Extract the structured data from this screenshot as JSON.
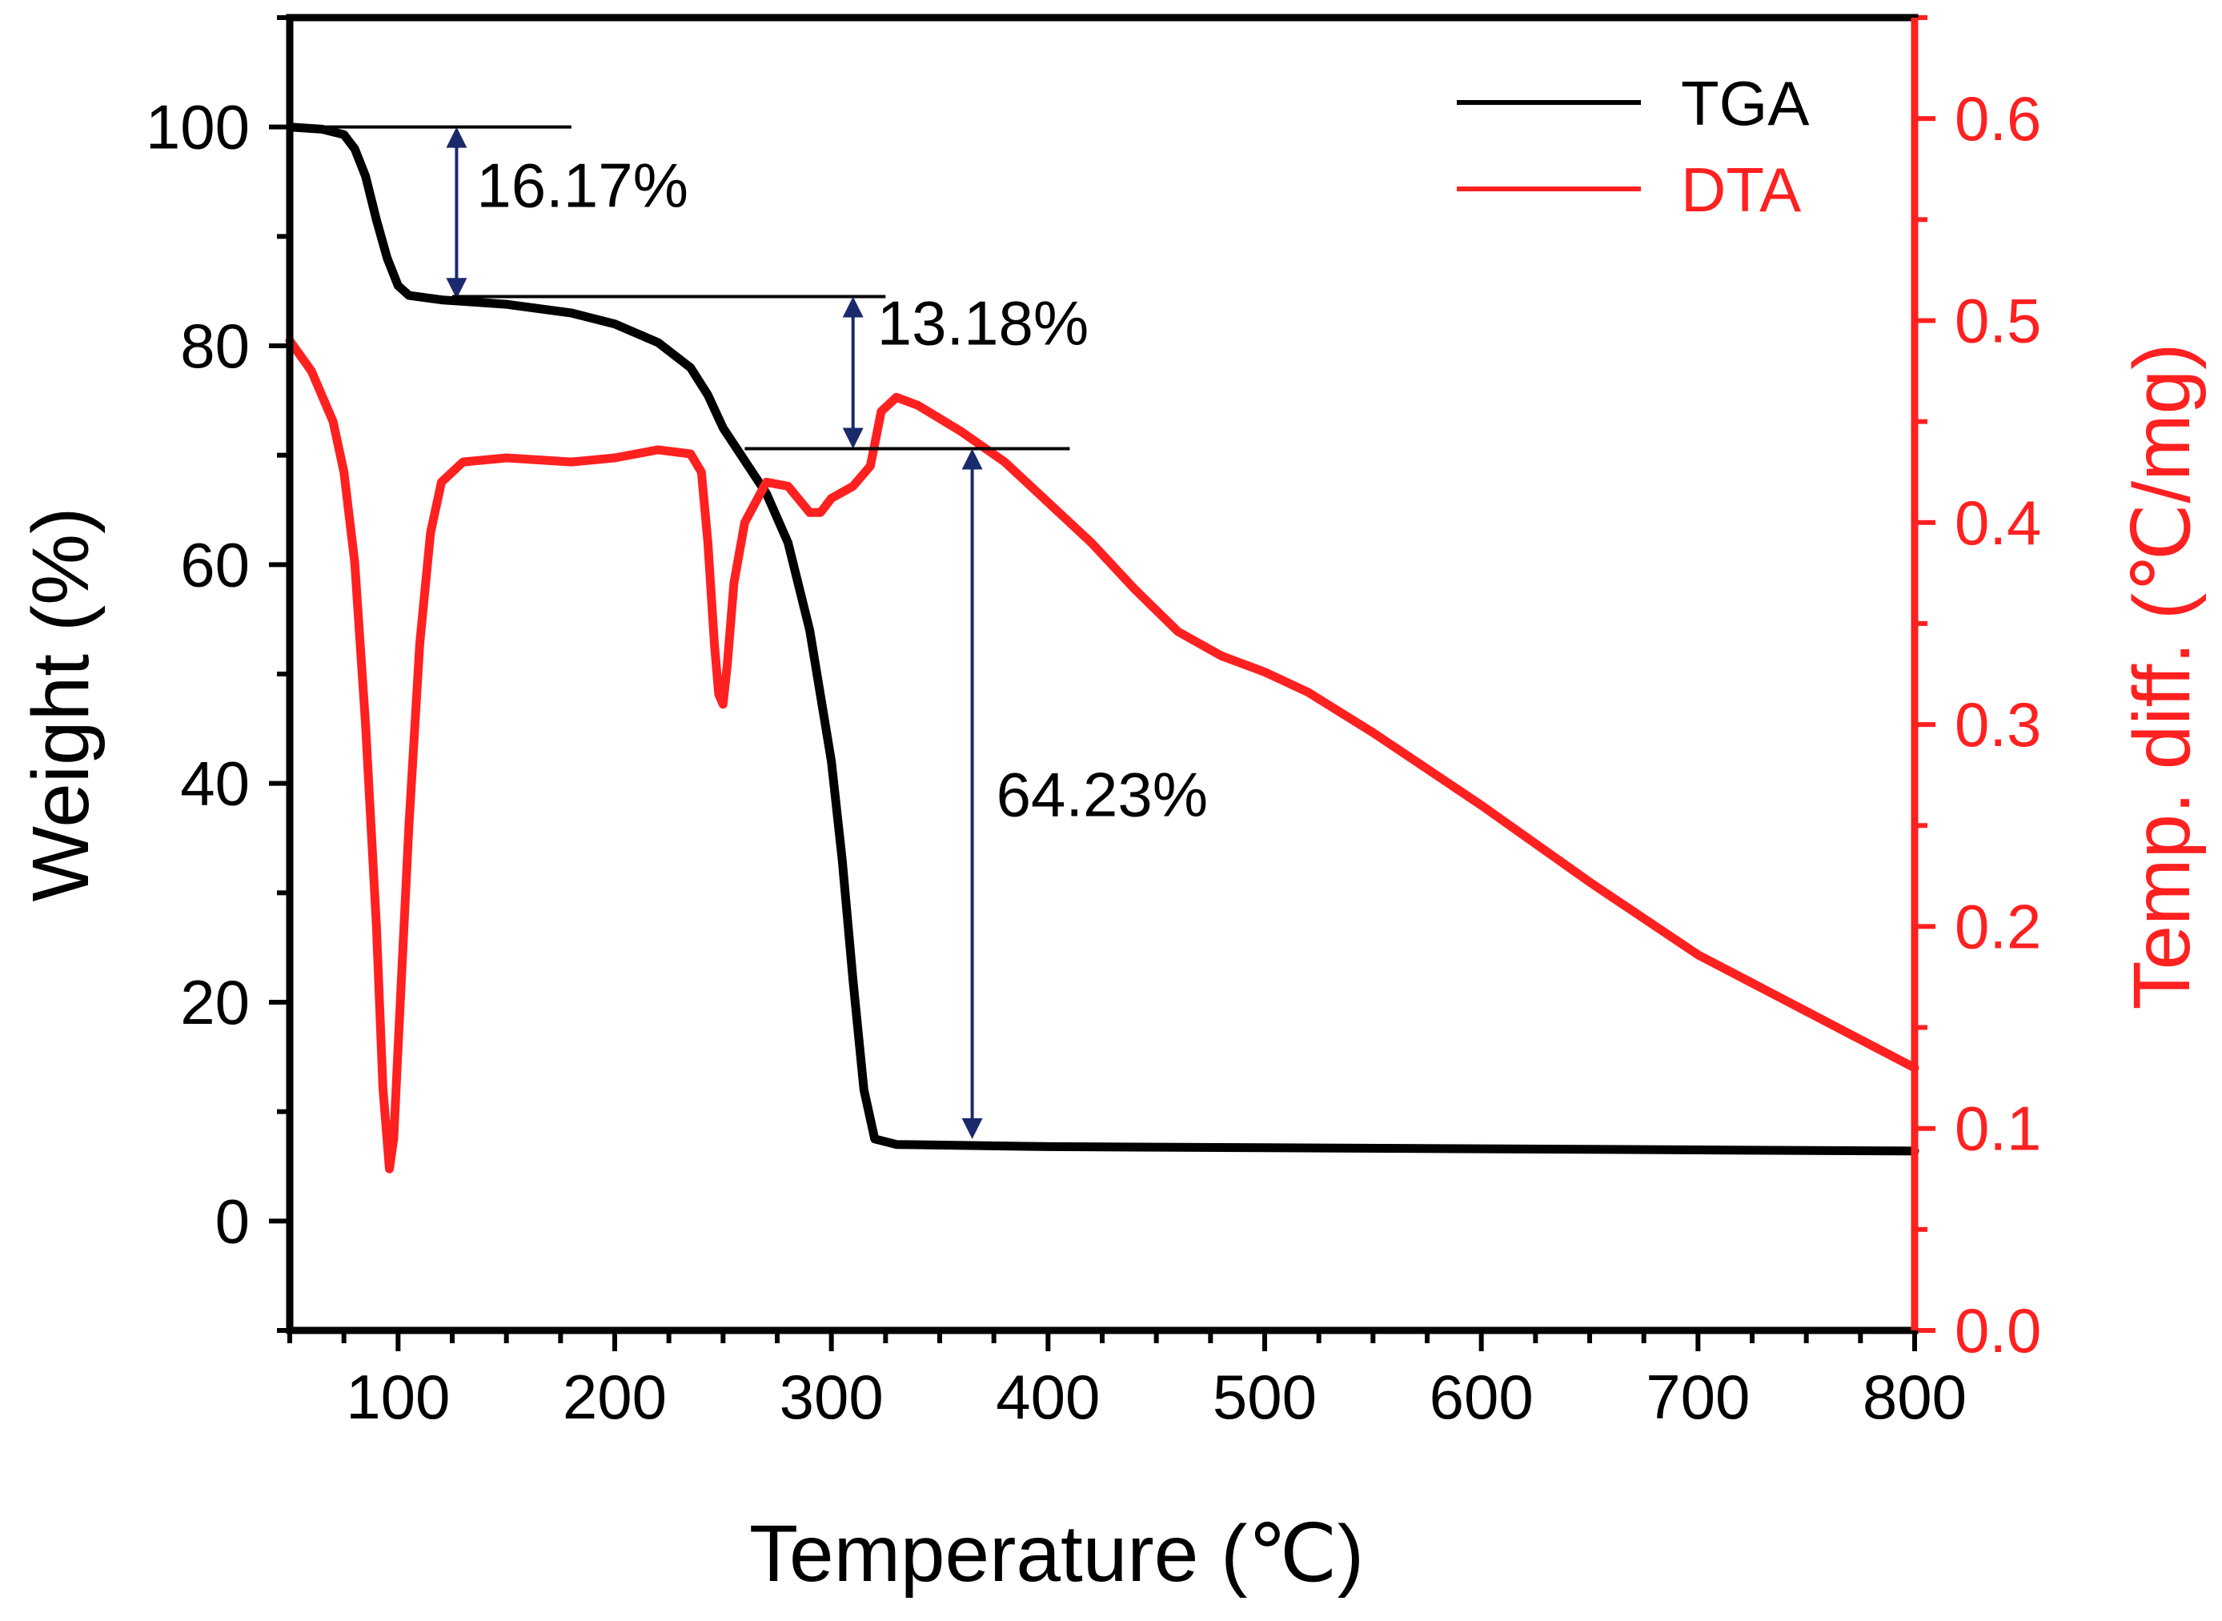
{
  "chart_data": {
    "type": "line",
    "xlabel": "Temperature (℃)",
    "ylabel_left": "Weight (%)",
    "ylabel_right": "Temp. diff. (℃/mg)",
    "xlim": [
      50,
      800
    ],
    "ylim_left": [
      -10,
      110
    ],
    "ylim_right": [
      0.0,
      0.65
    ],
    "x_ticks": [
      100,
      200,
      300,
      400,
      500,
      600,
      700,
      800
    ],
    "x_tick_labels": [
      "100",
      "200",
      "300",
      "400",
      "500",
      "600",
      "700",
      "800"
    ],
    "y_left_ticks": [
      0,
      20,
      40,
      60,
      80,
      100
    ],
    "y_left_tick_labels": [
      "0",
      "20",
      "40",
      "60",
      "80",
      "100"
    ],
    "y_right_ticks": [
      0.0,
      0.1,
      0.2,
      0.3,
      0.4,
      0.5,
      0.6
    ],
    "y_right_tick_labels": [
      "0.0",
      "0.1",
      "0.2",
      "0.3",
      "0.4",
      "0.5",
      "0.6"
    ],
    "legend": {
      "position": "top-right",
      "entries": [
        "TGA",
        "DTA"
      ]
    },
    "colors": {
      "TGA": "#000000",
      "DTA": "#ff2020",
      "annotation": "#1a2a6c",
      "right_axis": "#ff2020"
    },
    "series": [
      {
        "name": "TGA",
        "axis": "left",
        "points": [
          [
            50,
            100
          ],
          [
            65,
            99.8
          ],
          [
            75,
            99.3
          ],
          [
            80,
            98
          ],
          [
            85,
            95.5
          ],
          [
            90,
            91.5
          ],
          [
            95,
            88
          ],
          [
            100,
            85.5
          ],
          [
            105,
            84.6
          ],
          [
            120,
            84.2
          ],
          [
            150,
            83.8
          ],
          [
            180,
            83
          ],
          [
            200,
            82
          ],
          [
            220,
            80.3
          ],
          [
            235,
            78
          ],
          [
            243,
            75.5
          ],
          [
            250,
            72.5
          ],
          [
            260,
            69.5
          ],
          [
            270,
            66.5
          ],
          [
            280,
            62
          ],
          [
            290,
            54
          ],
          [
            300,
            42
          ],
          [
            305,
            33
          ],
          [
            310,
            22
          ],
          [
            315,
            12
          ],
          [
            320,
            7.5
          ],
          [
            330,
            7
          ],
          [
            400,
            6.8
          ],
          [
            500,
            6.7
          ],
          [
            600,
            6.6
          ],
          [
            700,
            6.5
          ],
          [
            800,
            6.4
          ]
        ]
      },
      {
        "name": "DTA",
        "axis": "right",
        "points": [
          [
            50,
            0.49
          ],
          [
            60,
            0.475
          ],
          [
            70,
            0.45
          ],
          [
            75,
            0.425
          ],
          [
            80,
            0.38
          ],
          [
            85,
            0.3
          ],
          [
            90,
            0.2
          ],
          [
            93,
            0.12
          ],
          [
            96,
            0.08
          ],
          [
            98,
            0.095
          ],
          [
            100,
            0.14
          ],
          [
            105,
            0.25
          ],
          [
            110,
            0.34
          ],
          [
            115,
            0.395
          ],
          [
            120,
            0.42
          ],
          [
            130,
            0.43
          ],
          [
            150,
            0.432
          ],
          [
            180,
            0.43
          ],
          [
            200,
            0.432
          ],
          [
            220,
            0.436
          ],
          [
            235,
            0.434
          ],
          [
            240,
            0.425
          ],
          [
            243,
            0.39
          ],
          [
            246,
            0.34
          ],
          [
            248,
            0.315
          ],
          [
            250,
            0.31
          ],
          [
            252,
            0.33
          ],
          [
            255,
            0.37
          ],
          [
            260,
            0.4
          ],
          [
            270,
            0.42
          ],
          [
            280,
            0.418
          ],
          [
            290,
            0.405
          ],
          [
            295,
            0.405
          ],
          [
            300,
            0.412
          ],
          [
            310,
            0.418
          ],
          [
            318,
            0.428
          ],
          [
            323,
            0.455
          ],
          [
            330,
            0.462
          ],
          [
            340,
            0.458
          ],
          [
            360,
            0.445
          ],
          [
            380,
            0.43
          ],
          [
            400,
            0.41
          ],
          [
            420,
            0.39
          ],
          [
            440,
            0.367
          ],
          [
            460,
            0.346
          ],
          [
            480,
            0.334
          ],
          [
            500,
            0.326
          ],
          [
            520,
            0.316
          ],
          [
            550,
            0.296
          ],
          [
            600,
            0.26
          ],
          [
            650,
            0.222
          ],
          [
            700,
            0.186
          ],
          [
            750,
            0.158
          ],
          [
            800,
            0.13
          ]
        ]
      }
    ],
    "annotations": [
      {
        "label": "16.17%",
        "arrow_x": 127,
        "from": 100,
        "to": 84.3,
        "line_x": [
          50,
          180
        ],
        "line_y": 100
      },
      {
        "label": "13.18%",
        "arrow_x": 310,
        "from": 84.5,
        "to": 70.6,
        "line_x": [
          125,
          325
        ],
        "line_y": 84.5
      },
      {
        "label": "64.23%",
        "arrow_x": 365,
        "from": 70.6,
        "to": 7.5,
        "line_x": [
          260,
          410
        ],
        "line_y": 70.6
      }
    ]
  }
}
